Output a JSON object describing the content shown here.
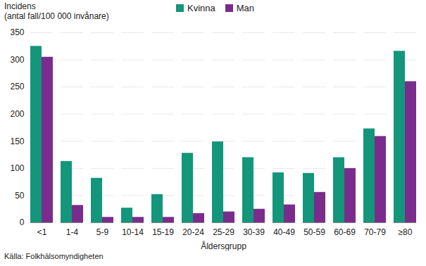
{
  "chart_data": {
    "type": "bar",
    "y_label": "Incidens\n(antal fall/100 000 invånare)",
    "x_label": "Åldersgrupp",
    "caption": "Källa: Folkhälsomyndigheten",
    "categories": [
      "<1",
      "1-4",
      "5-9",
      "10-14",
      "15-19",
      "20-24",
      "25-29",
      "30-39",
      "40-49",
      "50-59",
      "60-69",
      "70-79",
      "≥80"
    ],
    "series": [
      {
        "name": "Kvinna",
        "color": "#14967a",
        "values": [
          325,
          113,
          82,
          27,
          52,
          128,
          149,
          120,
          92,
          91,
          120,
          173,
          316
        ]
      },
      {
        "name": "Man",
        "color": "#7a2c8c",
        "values": [
          305,
          32,
          10,
          10,
          10,
          17,
          20,
          25,
          33,
          56,
          100,
          159,
          260
        ]
      }
    ],
    "ylim": [
      0,
      350
    ],
    "yticks": [
      0,
      50,
      100,
      150,
      200,
      250,
      300,
      350
    ],
    "grid": true,
    "legend": "top"
  }
}
